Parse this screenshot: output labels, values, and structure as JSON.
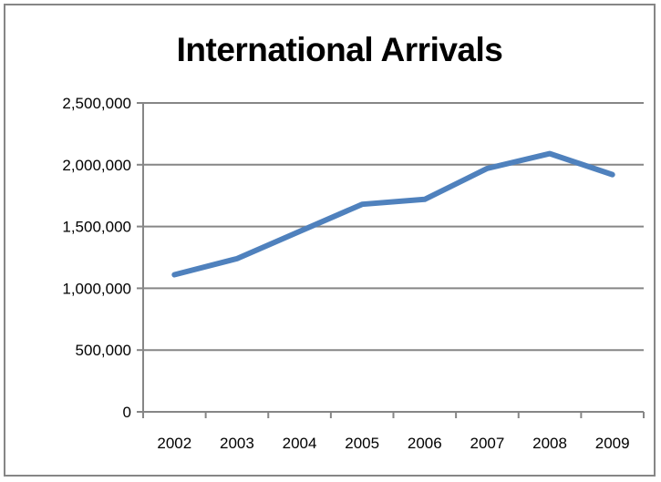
{
  "chart_data": {
    "type": "line",
    "title": "International Arrivals",
    "xlabel": "",
    "ylabel": "",
    "x": [
      "2002",
      "2003",
      "2004",
      "2005",
      "2006",
      "2007",
      "2008",
      "2009"
    ],
    "series": [
      {
        "values": [
          1110000,
          1240000,
          1460000,
          1680000,
          1720000,
          1970000,
          2090000,
          1920000
        ],
        "color": "#4F81BD"
      }
    ],
    "ylim": [
      0,
      2500000
    ],
    "yticks": [
      0,
      500000,
      1000000,
      1500000,
      2000000,
      2500000
    ],
    "ytick_labels": [
      "0",
      "500,000",
      "1,000,000",
      "1,500,000",
      "2,000,000",
      "2,500,000"
    ],
    "grid": "horizontal",
    "legend": "none"
  }
}
